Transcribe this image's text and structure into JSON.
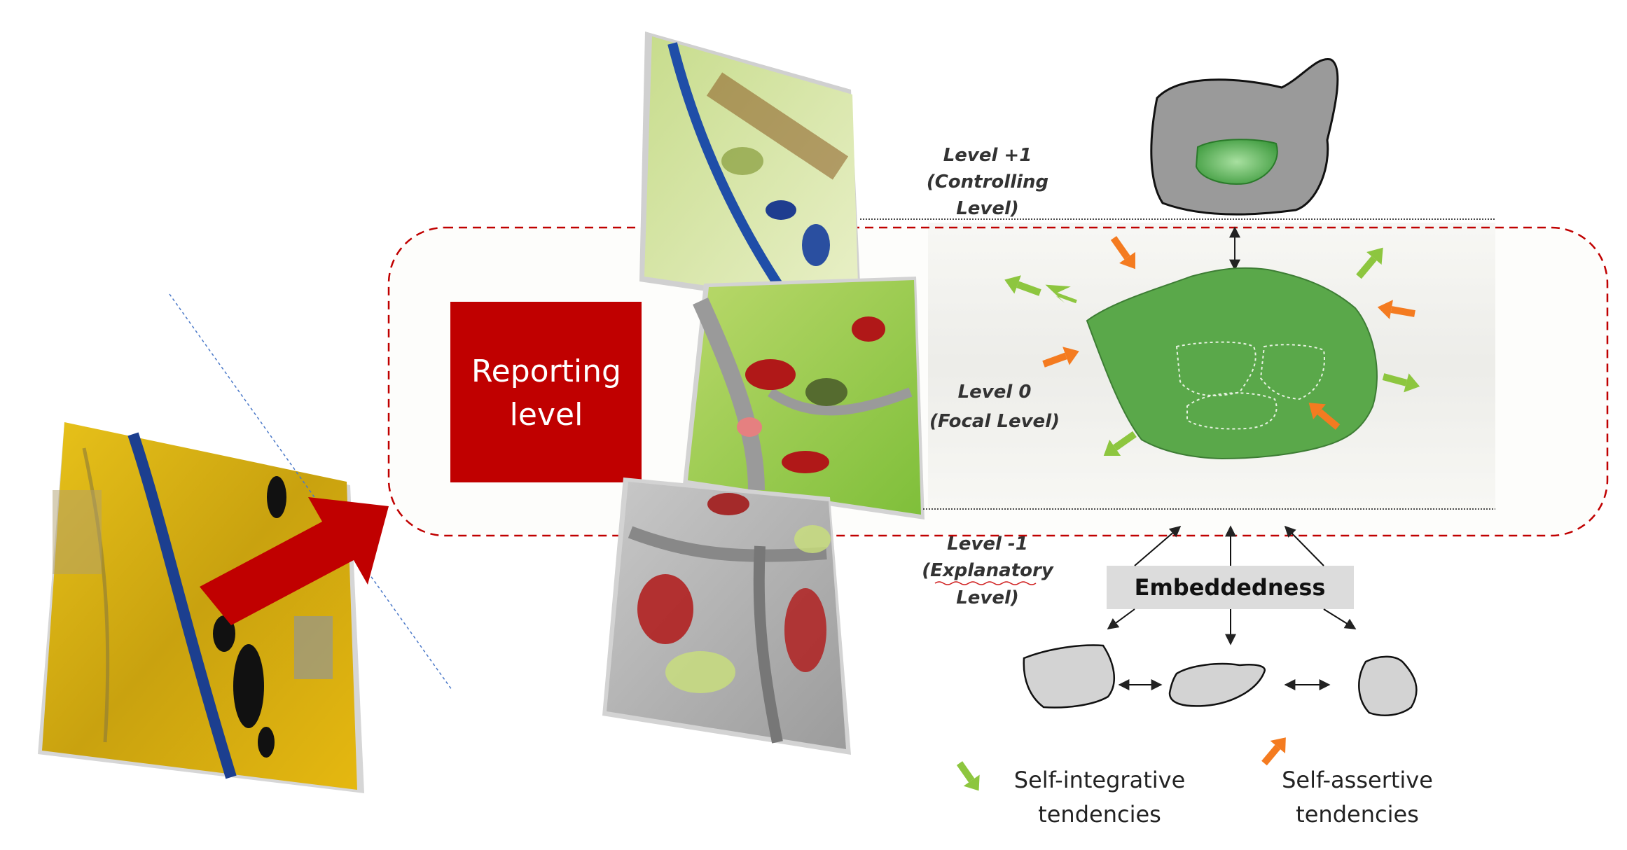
{
  "labels": {
    "reporting_line1": "Reporting",
    "reporting_line2": "level",
    "level_plus1_line1": "Level +1",
    "level_plus1_line2": "(Controlling",
    "level_plus1_line3": "Level)",
    "level_0_line1": "Level 0",
    "level_0_line2": "(Focal Level)",
    "level_minus1_line1": "Level -1",
    "level_minus1_line2": "(Explanatory",
    "level_minus1_line3": "Level)",
    "embeddedness": "Embeddedness"
  },
  "legend": {
    "integrative_line1": "Self-integrative",
    "integrative_line2": "tendencies",
    "assertive_line1": "Self-assertive",
    "assertive_line2": "tendencies"
  },
  "colors": {
    "reporting_box": "#c00000",
    "dashed_frame": "#c00000",
    "big_arrow": "#c00000",
    "integrative_arrow": "#8dc63f",
    "assertive_arrow": "#f47b20",
    "focal_patch": "#5aa84a",
    "controlling_patch": "#9a9a9a",
    "sub_patch": "#d3d3d3"
  }
}
